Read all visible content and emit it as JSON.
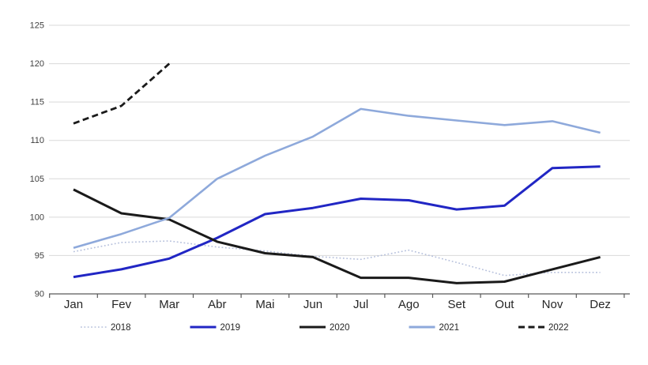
{
  "chart_data": {
    "type": "line",
    "title": "",
    "xlabel": "",
    "ylabel": "",
    "grid": true,
    "legend_position": "bottom",
    "ylim": [
      90,
      125
    ],
    "yticks": [
      90,
      95,
      100,
      105,
      110,
      115,
      120,
      125
    ],
    "categories": [
      "Jan",
      "Fev",
      "Mar",
      "Abr",
      "Mai",
      "Jun",
      "Jul",
      "Ago",
      "Set",
      "Out",
      "Nov",
      "Dez"
    ],
    "series": [
      {
        "name": "2018",
        "style": "dotted",
        "color": "#b6c0dc",
        "width": 1.6,
        "values": [
          95.5,
          96.7,
          96.9,
          96.1,
          95.6,
          94.9,
          94.5,
          95.7,
          94.1,
          92.4,
          92.8,
          92.8
        ]
      },
      {
        "name": "2019",
        "style": "solid",
        "color": "#2126c4",
        "width": 3,
        "values": [
          92.2,
          93.2,
          94.6,
          97.3,
          100.4,
          101.2,
          102.4,
          102.2,
          101.0,
          101.5,
          106.4,
          106.6
        ]
      },
      {
        "name": "2020",
        "style": "solid",
        "color": "#1a1a1a",
        "width": 3,
        "values": [
          103.6,
          100.5,
          99.7,
          96.8,
          95.3,
          94.8,
          92.1,
          92.1,
          91.4,
          91.6,
          93.2,
          94.8
        ]
      },
      {
        "name": "2021",
        "style": "solid",
        "color": "#8ea9db",
        "width": 2.6,
        "values": [
          96.0,
          97.8,
          99.9,
          105.0,
          108.0,
          110.5,
          114.1,
          113.2,
          112.6,
          112.0,
          112.5,
          111.0
        ]
      },
      {
        "name": "2022",
        "style": "dashed",
        "color": "#1a1a1a",
        "width": 2.8,
        "values": [
          112.2,
          114.5,
          120.0,
          null,
          null,
          null,
          null,
          null,
          null,
          null,
          null,
          null
        ]
      }
    ]
  },
  "colors": {
    "background": "#ffffff",
    "gridline": "#d9d9d9",
    "axis_line": "#595959",
    "y_tick_label": "#404040",
    "month_label": "#262626",
    "legend_label": "#262626"
  }
}
